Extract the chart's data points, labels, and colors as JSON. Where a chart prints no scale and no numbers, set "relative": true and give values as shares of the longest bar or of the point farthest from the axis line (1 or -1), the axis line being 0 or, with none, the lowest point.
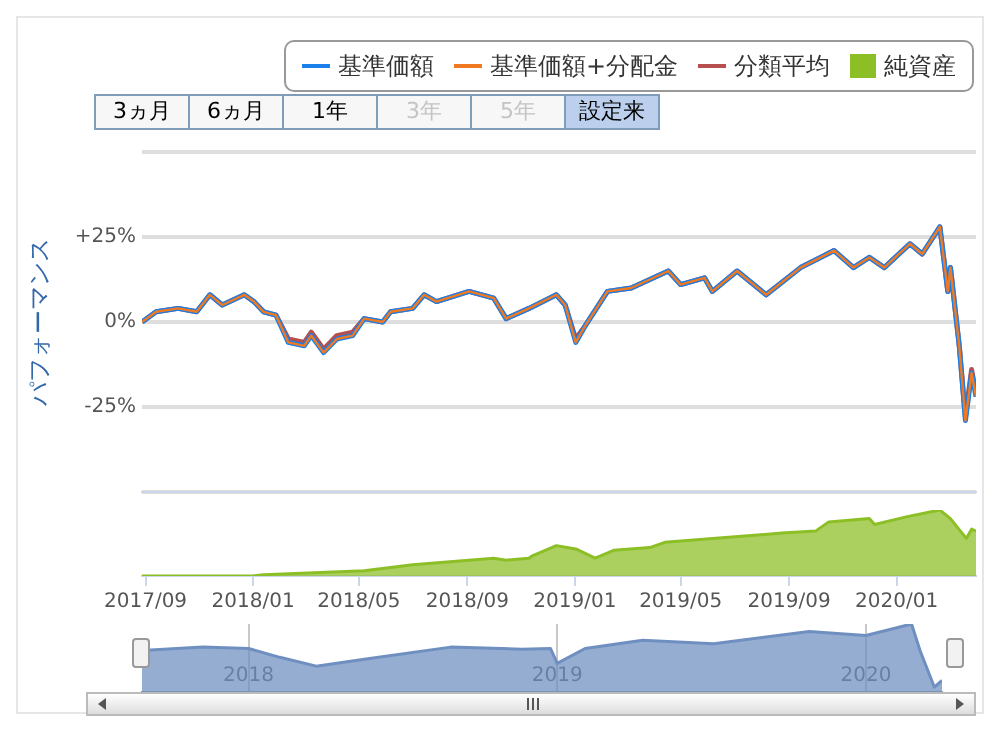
{
  "chart_data": [
    {
      "type": "line",
      "ylabel": "パフォーマンス",
      "legend": "top",
      "tick_labels": "y",
      "grid": "y",
      "annotations": [
        "3ヵ月",
        "6ヵ月",
        "1年",
        "3年",
        "5年",
        "設定来"
      ],
      "xlim": [
        "2017-08-28",
        "2020-03-31"
      ],
      "ylim": [
        -50,
        50
      ],
      "yticks": [
        {
          "value": 50,
          "label": null
        },
        {
          "value": 25,
          "label": "+25%"
        },
        {
          "value": 0,
          "label": "0%"
        },
        {
          "value": -25,
          "label": "-25%"
        },
        {
          "value": -50,
          "label": null
        }
      ],
      "x": [
        "2017-08-28",
        "2017-09-13",
        "2017-10-08",
        "2017-10-29",
        "2017-11-13",
        "2017-11-27",
        "2017-12-22",
        "2018-01-02",
        "2018-01-13",
        "2018-01-27",
        "2018-02-10",
        "2018-02-28",
        "2018-03-08",
        "2018-03-22",
        "2018-04-06",
        "2018-04-24",
        "2018-05-07",
        "2018-05-28",
        "2018-06-06",
        "2018-07-01",
        "2018-07-14",
        "2018-07-28",
        "2018-09-03",
        "2018-10-01",
        "2018-10-15",
        "2018-11-10",
        "2018-12-11",
        "2018-12-21",
        "2019-01-02",
        "2019-01-13",
        "2019-02-07",
        "2019-03-06",
        "2019-04-17",
        "2019-05-01",
        "2019-05-28",
        "2019-06-06",
        "2019-07-04",
        "2019-08-06",
        "2019-09-14",
        "2019-10-22",
        "2019-11-13",
        "2019-12-01",
        "2019-12-18",
        "2020-01-16",
        "2020-01-30",
        "2020-02-19",
        "2020-02-28",
        "2020-03-02",
        "2020-03-12",
        "2020-03-19",
        "2020-03-26",
        "2020-03-31"
      ],
      "series": [
        {
          "name": "基準価額",
          "color": "#1a7fe8",
          "values": [
            0,
            3,
            4,
            3,
            8,
            5,
            8,
            6,
            3,
            2,
            -6,
            -7,
            -4,
            -9,
            -5,
            -4,
            1,
            0,
            3,
            4,
            8,
            6,
            9,
            7,
            1,
            4,
            8,
            5,
            -6,
            -1,
            9,
            10,
            15,
            11,
            13,
            9,
            15,
            8,
            16,
            21,
            16,
            19,
            16,
            23,
            20,
            28,
            9,
            16,
            -7,
            -29,
            -15,
            -22
          ]
        },
        {
          "name": "基準価額+分配金",
          "color": "#f07a22",
          "values": [
            0,
            3,
            4,
            3,
            8,
            5,
            8,
            6,
            3,
            2,
            -6,
            -7,
            -4,
            -9,
            -5,
            -4,
            1,
            0,
            3,
            4,
            8,
            6,
            9,
            7,
            1,
            4,
            8,
            5,
            -6,
            -1,
            9,
            10,
            15,
            11,
            13,
            9,
            15,
            8,
            16,
            21,
            16,
            19,
            16,
            23,
            20,
            28,
            9,
            16,
            -7,
            -29,
            -15,
            -22
          ]
        },
        {
          "name": "分類平均",
          "color": "#b5504f",
          "values": [
            0,
            3,
            4,
            3,
            8,
            5,
            8,
            6,
            3,
            2,
            -5,
            -6,
            -3,
            -8,
            -4,
            -3,
            1,
            0,
            3,
            4,
            8,
            6,
            9,
            7,
            1,
            4,
            8,
            5,
            -5,
            -1,
            9,
            10,
            15,
            11,
            13,
            9,
            15,
            8,
            16,
            21,
            16,
            19,
            16,
            23,
            20,
            28,
            9,
            16,
            -7,
            -28,
            -14,
            -21
          ]
        }
      ]
    },
    {
      "type": "area",
      "relative": true,
      "legend": "top",
      "tick_labels": "x",
      "xlim": [
        "2017-08-28",
        "2020-03-31"
      ],
      "xticks": [
        {
          "value": "2017-09-01",
          "label": "2017/09"
        },
        {
          "value": "2018-01-01",
          "label": "2018/01"
        },
        {
          "value": "2018-05-01",
          "label": "2018/05"
        },
        {
          "value": "2018-09-01",
          "label": "2018/09"
        },
        {
          "value": "2019-01-01",
          "label": "2019/01"
        },
        {
          "value": "2019-05-01",
          "label": "2019/05"
        },
        {
          "value": "2019-09-01",
          "label": "2019/09"
        },
        {
          "value": "2020-01-01",
          "label": "2020/01"
        }
      ],
      "x": [
        "2017-08-28",
        "2018-01-01",
        "2018-01-13",
        "2018-05-07",
        "2018-07-01",
        "2018-10-01",
        "2018-10-15",
        "2018-11-10",
        "2018-11-13",
        "2018-12-11",
        "2019-01-02",
        "2019-01-24",
        "2019-02-14",
        "2019-03-27",
        "2019-04-13",
        "2019-06-28",
        "2019-08-24",
        "2019-10-01",
        "2019-10-16",
        "2019-12-01",
        "2019-12-07",
        "2020-01-13",
        "2020-02-19",
        "2020-03-02",
        "2020-03-20",
        "2020-03-26",
        "2020-03-31"
      ],
      "series": [
        {
          "name": "純資産",
          "color": "#8cbf26",
          "values": [
            0,
            0,
            0.02,
            0.08,
            0.17,
            0.27,
            0.24,
            0.27,
            0.3,
            0.46,
            0.41,
            0.27,
            0.39,
            0.43,
            0.51,
            0.59,
            0.65,
            0.68,
            0.82,
            0.87,
            0.78,
            0.9,
            1,
            0.87,
            0.57,
            0.71,
            0.68
          ]
        }
      ]
    },
    {
      "type": "area",
      "relative": true,
      "tick_labels": "x",
      "grid": "x",
      "xlim": [
        "2017-08-28",
        "2020-03-31"
      ],
      "xticks": [
        {
          "value": "2018-01-01",
          "label": "2018"
        },
        {
          "value": "2019-01-01",
          "label": "2019"
        },
        {
          "value": "2020-01-01",
          "label": "2020"
        }
      ],
      "x": [
        "2017-08-28",
        "2017-11-08",
        "2018-01-01",
        "2018-02-07",
        "2018-03-22",
        "2018-05-22",
        "2018-08-28",
        "2018-11-20",
        "2018-12-24",
        "2019-01-01",
        "2019-02-03",
        "2019-04-12",
        "2019-07-05",
        "2019-10-26",
        "2020-01-01",
        "2020-02-24",
        "2020-03-05",
        "2020-03-22",
        "2020-03-31"
      ],
      "series": [
        {
          "color": "#6f8fc0",
          "values": [
            0.61,
            0.66,
            0.64,
            0.51,
            0.38,
            0.49,
            0.66,
            0.63,
            0.64,
            0.42,
            0.64,
            0.76,
            0.71,
            0.89,
            0.83,
            1,
            0.61,
            0.07,
            0.17
          ]
        }
      ]
    }
  ]
}
